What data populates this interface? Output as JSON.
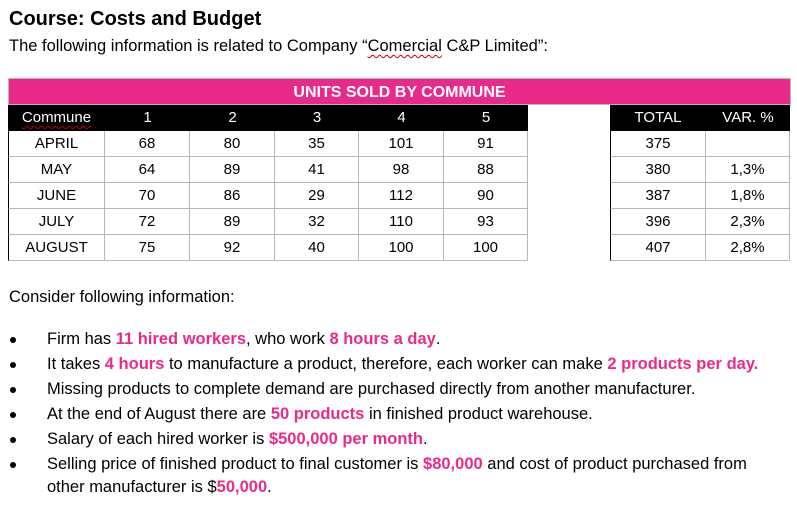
{
  "title": "Course: Costs and Budget",
  "subtitle_pre": "The following information is related to Company “",
  "subtitle_company_word": "Comercial",
  "subtitle_post": " C&P Limited”:",
  "table": {
    "band_title": "UNITS SOLD BY COMMUNE",
    "header": [
      "Commune",
      "1",
      "2",
      "3",
      "4",
      "5"
    ],
    "header_extra": [
      "TOTAL",
      "VAR. %"
    ],
    "rows": [
      {
        "month": "APRIL",
        "c1": "68",
        "c2": "80",
        "c3": "35",
        "c4": "101",
        "c5": "91",
        "total": "375",
        "var": ""
      },
      {
        "month": "MAY",
        "c1": "64",
        "c2": "89",
        "c3": "41",
        "c4": "98",
        "c5": "88",
        "total": "380",
        "var": "1,3%"
      },
      {
        "month": "JUNE",
        "c1": "70",
        "c2": "86",
        "c3": "29",
        "c4": "112",
        "c5": "90",
        "total": "387",
        "var": "1,8%"
      },
      {
        "month": "JULY",
        "c1": "72",
        "c2": "89",
        "c3": "32",
        "c4": "110",
        "c5": "93",
        "total": "396",
        "var": "2,3%"
      },
      {
        "month": "AUGUST",
        "c1": "75",
        "c2": "92",
        "c3": "40",
        "c4": "100",
        "c5": "100",
        "total": "407",
        "var": "2,8%"
      }
    ]
  },
  "consider": "Consider following information:",
  "bullets": [
    {
      "segments": [
        {
          "t": "Firm has ",
          "h": false
        },
        {
          "t": "11 hired workers",
          "h": true
        },
        {
          "t": ", who work ",
          "h": false
        },
        {
          "t": "8 hours a day",
          "h": true
        },
        {
          "t": ".",
          "h": false
        }
      ]
    },
    {
      "segments": [
        {
          "t": "It takes ",
          "h": false
        },
        {
          "t": "4 hours",
          "h": true
        },
        {
          "t": " to manufacture a product, therefore, each worker can make ",
          "h": false
        },
        {
          "t": "2 products per day.",
          "h": true
        }
      ]
    },
    {
      "segments": [
        {
          "t": "Missing products to complete demand are purchased directly from another manufacturer.",
          "h": false
        }
      ]
    },
    {
      "segments": [
        {
          "t": "At the end of August there are ",
          "h": false
        },
        {
          "t": "50 products",
          "h": true
        },
        {
          "t": " in finished product warehouse.",
          "h": false
        }
      ]
    },
    {
      "segments": [
        {
          "t": "Salary of each hired worker is ",
          "h": false
        },
        {
          "t": "$500,000 per month",
          "h": true
        },
        {
          "t": ".",
          "h": false
        }
      ]
    },
    {
      "segments": [
        {
          "t": "Selling price of finished product to final customer is ",
          "h": false
        },
        {
          "t": "$80,000",
          "h": true
        },
        {
          "t": " and cost of product purchased from other manufacturer is $",
          "h": false
        },
        {
          "t": "50,000",
          "h": true
        },
        {
          "t": ".",
          "h": false
        }
      ]
    }
  ],
  "colors": {
    "accent": "#ea2a8a",
    "header_bg": "#000000"
  }
}
